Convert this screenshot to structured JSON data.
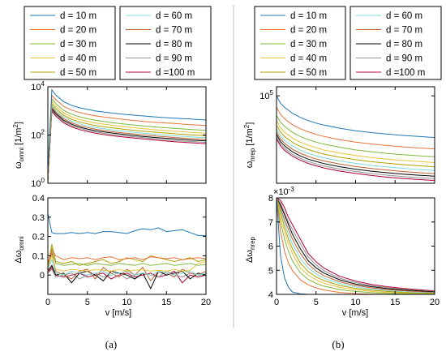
{
  "colors": [
    "#1f77b4",
    "#e8743b",
    "#7fb83b",
    "#e8c33b",
    "#b0a000",
    "#7fd8d8",
    "#c06030",
    "#000000",
    "#909090",
    "#b00030"
  ],
  "legend_entries": [
    "d = 10 m",
    "d = 20 m",
    "d = 30 m",
    "d = 40 m",
    "d = 50 m",
    "d = 60 m",
    "d = 70 m",
    "d = 80 m",
    "d = 90 m",
    "d =100 m"
  ],
  "labels": {
    "ylab_omni": "ω",
    "ylab_omni_sub": "omni",
    "ylab_omni_unit": " [1/m",
    "ylab_omni_sup": "2",
    "ylab_omni_close": "]",
    "ylab_nrep": "ω",
    "ylab_nrep_sub": "nrep",
    "ylab_nrep_unit": " [1/m",
    "ylab_nrep_sup": "2",
    "ylab_nrep_close": "]",
    "ylab_domni": "Δω",
    "ylab_domni_sub": "omni",
    "ylab_dnrep": "Δω",
    "ylab_dnrep_sub": "nrep",
    "xlab_a": "v [m/s]",
    "xlab_b": "v [m/s]",
    "exp_base": "×10",
    "exp_power": "-3",
    "caption_a": "(a)",
    "caption_b": "(b)"
  },
  "chart_data": [
    {
      "id": "omni",
      "type": "line",
      "scale": "log",
      "xlabel": "v [m/s]",
      "ylabel": "ω_omni [1/m²]",
      "xlim": [
        0,
        20
      ],
      "ylim": [
        1,
        10000
      ],
      "xticks": [],
      "yticks": [
        {
          "label": "10",
          "sup": "0",
          "v": 1
        },
        {
          "label": "10",
          "sup": "2",
          "v": 100
        },
        {
          "label": "10",
          "sup": "4",
          "v": 10000
        }
      ],
      "x": [
        0,
        0.5,
        1,
        2,
        3,
        4,
        5,
        6,
        8,
        10,
        12,
        14,
        16,
        18,
        20
      ],
      "series": [
        {
          "values": [
            3,
            7500,
            4500,
            2400,
            1700,
            1350,
            1150,
            1000,
            820,
            700,
            620,
            550,
            500,
            460,
            420
          ]
        },
        {
          "values": [
            2,
            4500,
            2900,
            1550,
            1080,
            850,
            720,
            620,
            510,
            430,
            370,
            330,
            300,
            270,
            250
          ]
        },
        {
          "values": [
            1.8,
            3200,
            2000,
            1050,
            730,
            570,
            480,
            410,
            330,
            280,
            240,
            210,
            190,
            170,
            155
          ]
        },
        {
          "values": [
            1.6,
            2500,
            1550,
            820,
            560,
            440,
            370,
            315,
            255,
            215,
            185,
            160,
            145,
            130,
            118
          ]
        },
        {
          "values": [
            1.5,
            2000,
            1250,
            650,
            450,
            350,
            290,
            248,
            200,
            168,
            145,
            127,
            113,
            102,
            93
          ]
        },
        {
          "values": [
            1.4,
            1700,
            1050,
            550,
            375,
            290,
            240,
            205,
            165,
            139,
            120,
            105,
            93,
            84,
            77
          ]
        },
        {
          "values": [
            1.3,
            1450,
            900,
            470,
            320,
            248,
            205,
            175,
            140,
            118,
            102,
            89,
            79,
            71,
            65
          ]
        },
        {
          "values": [
            1.25,
            1250,
            780,
            410,
            280,
            216,
            178,
            152,
            122,
            103,
            88,
            77,
            69,
            62,
            57
          ]
        },
        {
          "values": [
            1.2,
            1100,
            690,
            360,
            245,
            190,
            157,
            134,
            107,
            90,
            78,
            68,
            60,
            54,
            50
          ]
        },
        {
          "values": [
            1.15,
            980,
            610,
            320,
            218,
            168,
            139,
            119,
            95,
            80,
            69,
            60,
            53,
            48,
            44
          ]
        }
      ]
    },
    {
      "id": "domni",
      "type": "line",
      "scale": "linear",
      "xlabel": "v [m/s]",
      "ylabel": "Δω_omni",
      "xlim": [
        0,
        20
      ],
      "ylim": [
        -0.1,
        0.4
      ],
      "xticks": [
        0,
        5,
        10,
        15,
        20
      ],
      "yticks": [
        {
          "label": "0",
          "v": 0
        },
        {
          "label": "0.1",
          "v": 0.1
        },
        {
          "label": "0.2",
          "v": 0.2
        },
        {
          "label": "0.3",
          "v": 0.3
        },
        {
          "label": "0.4",
          "v": 0.4
        }
      ],
      "x": [
        0,
        0.5,
        1,
        2,
        3,
        4,
        5,
        6,
        7,
        8,
        9,
        10,
        11,
        12,
        13,
        14,
        15,
        16,
        17,
        18,
        19,
        20
      ],
      "series": [
        {
          "values": [
            0.32,
            0.22,
            0.215,
            0.215,
            0.22,
            0.215,
            0.22,
            0.215,
            0.225,
            0.225,
            0.22,
            0.215,
            0.23,
            0.24,
            0.235,
            0.245,
            0.225,
            0.23,
            0.235,
            0.22,
            0.205,
            0.205
          ]
        },
        {
          "values": [
            0.06,
            0.13,
            0.1,
            0.08,
            0.09,
            0.085,
            0.09,
            0.08,
            0.09,
            0.095,
            0.08,
            0.085,
            0.09,
            0.08,
            0.095,
            0.09,
            0.085,
            0.09,
            0.08,
            0.085,
            0.09,
            0.085
          ]
        },
        {
          "values": [
            0.05,
            0.14,
            0.06,
            0.05,
            0.055,
            0.06,
            0.05,
            0.06,
            0.055,
            0.05,
            0.06,
            0.055,
            0.05,
            0.06,
            0.05,
            0.055,
            0.06,
            0.05,
            0.055,
            0.06,
            0.05,
            0.055
          ]
        },
        {
          "values": [
            0.04,
            0.1,
            0.03,
            0.02,
            0.03,
            0.025,
            0.02,
            0.03,
            0.025,
            0.02,
            0.03,
            0.02,
            0.025,
            0.03,
            0.02,
            0.025,
            0.02,
            0.03,
            0.02,
            0.025,
            0.06,
            0.07
          ]
        },
        {
          "values": [
            0.04,
            0.16,
            0.07,
            0.06,
            0.07,
            0.05,
            0.06,
            0.07,
            0.08,
            0.06,
            0.07,
            0.09,
            0.08,
            0.07,
            0.1,
            0.09,
            0.08,
            0.07,
            0.08,
            0.09,
            0.07,
            0.08
          ]
        },
        {
          "values": [
            0.03,
            0.08,
            0.01,
            0.0,
            0.02,
            0.01,
            0.0,
            0.01,
            0.02,
            0.0,
            0.01,
            0.02,
            0.0,
            0.01,
            0.0,
            0.02,
            0.01,
            0.0,
            0.01,
            0.02,
            0.0,
            0.01
          ]
        },
        {
          "values": [
            0.02,
            0.12,
            0.02,
            0.0,
            -0.02,
            0.02,
            0.03,
            -0.02,
            0.04,
            0.01,
            -0.01,
            0.03,
            0.0,
            0.04,
            -0.03,
            0.02,
            0.01,
            -0.01,
            0.03,
            0.01,
            0.0,
            0.02
          ]
        },
        {
          "values": [
            0.02,
            0.05,
            0.0,
            0.01,
            -0.04,
            0.01,
            0.02,
            0.0,
            -0.03,
            0.02,
            0.01,
            0.0,
            -0.02,
            0.01,
            -0.07,
            0.02,
            0.0,
            0.01,
            0.02,
            -0.02,
            0.01,
            0.0
          ]
        },
        {
          "values": [
            0.01,
            0.03,
            -0.01,
            0.0,
            0.01,
            -0.02,
            0.0,
            0.01,
            -0.01,
            0.0,
            0.01,
            -0.02,
            0.0,
            0.01,
            0.0,
            -0.01,
            0.02,
            0.0,
            -0.01,
            0.01,
            0.0,
            0.0
          ]
        },
        {
          "values": [
            0.01,
            0.04,
            0.0,
            -0.01,
            0.0,
            0.01,
            -0.01,
            0.0,
            0.01,
            -0.02,
            0.0,
            0.01,
            -0.01,
            0.0,
            0.01,
            -0.01,
            0.0,
            0.02,
            -0.04,
            0.0,
            -0.01,
            0.0
          ]
        }
      ]
    },
    {
      "id": "nrep",
      "type": "line",
      "scale": "log",
      "xlabel": "v [m/s]",
      "ylabel": "ω_nrep [1/m²]",
      "xlim": [
        0,
        20
      ],
      "ylim": [
        2000,
        150000
      ],
      "xticks": [],
      "yticks": [
        {
          "label": "10",
          "sup": "5",
          "v": 100000
        }
      ],
      "x": [
        0,
        0.5,
        1,
        2,
        3,
        4,
        5,
        6,
        8,
        10,
        12,
        14,
        16,
        18,
        20
      ],
      "series": [
        {
          "values": [
            100000,
            72000,
            60000,
            46000,
            38000,
            33000,
            29500,
            27000,
            23500,
            21000,
            19300,
            18000,
            17000,
            16200,
            15500
          ]
        },
        {
          "values": [
            60000,
            44000,
            36000,
            27500,
            23000,
            20000,
            17800,
            16200,
            14100,
            12600,
            11600,
            10800,
            10200,
            9700,
            9300
          ]
        },
        {
          "values": [
            42000,
            31000,
            25500,
            19500,
            16200,
            14100,
            12600,
            11500,
            10000,
            8900,
            8200,
            7600,
            7200,
            6850,
            6550
          ]
        },
        {
          "values": [
            33000,
            24000,
            19800,
            15100,
            12600,
            11000,
            9800,
            8900,
            7750,
            6950,
            6350,
            5900,
            5550,
            5300,
            5050
          ]
        },
        {
          "values": [
            27000,
            19800,
            16300,
            12500,
            10400,
            9050,
            8100,
            7350,
            6400,
            5750,
            5250,
            4900,
            4600,
            4380,
            4180
          ]
        },
        {
          "values": [
            23000,
            16800,
            13800,
            10600,
            8800,
            7650,
            6850,
            6250,
            5430,
            4870,
            4450,
            4150,
            3900,
            3710,
            3550
          ]
        },
        {
          "values": [
            20000,
            14600,
            12000,
            9200,
            7650,
            6650,
            5950,
            5430,
            4720,
            4230,
            3870,
            3600,
            3390,
            3220,
            3080
          ]
        },
        {
          "values": [
            17800,
            13000,
            10700,
            8200,
            6800,
            5900,
            5300,
            4830,
            4200,
            3760,
            3440,
            3200,
            3010,
            2860,
            2740
          ]
        },
        {
          "values": [
            16000,
            11700,
            9600,
            7350,
            6100,
            5300,
            4750,
            4330,
            3770,
            3380,
            3090,
            2870,
            2700,
            2570,
            2460
          ]
        },
        {
          "values": [
            14600,
            10700,
            8800,
            6750,
            5600,
            4870,
            4360,
            3970,
            3450,
            3100,
            2830,
            2630,
            2480,
            2360,
            2260
          ]
        }
      ]
    },
    {
      "id": "dnrep",
      "type": "line",
      "scale": "linear",
      "xlabel": "v [m/s]",
      "ylabel": "Δω_nrep",
      "xlim": [
        0,
        20
      ],
      "ylim": [
        0.004,
        0.008
      ],
      "xticks": [
        0,
        5,
        10,
        15,
        20
      ],
      "yticks": [
        {
          "label": "4",
          "v": 0.004
        },
        {
          "label": "5",
          "v": 0.005
        },
        {
          "label": "6",
          "v": 0.006
        },
        {
          "label": "7",
          "v": 0.007
        },
        {
          "label": "8",
          "v": 0.008
        }
      ],
      "x": [
        0,
        0.5,
        1,
        1.5,
        2,
        3,
        4,
        5,
        6,
        8,
        10,
        12,
        14,
        16,
        18,
        20
      ],
      "series": [
        {
          "values": [
            0.008,
            0.0056,
            0.0047,
            0.0043,
            0.0041,
            0.00402,
            0.004,
            0.004,
            0.004,
            0.004,
            0.004,
            0.004,
            0.004,
            0.004,
            0.004,
            0.004
          ]
        },
        {
          "values": [
            0.008,
            0.0066,
            0.0058,
            0.0053,
            0.005,
            0.0046,
            0.0044,
            0.00427,
            0.00418,
            0.00408,
            0.00403,
            0.00401,
            0.004,
            0.004,
            0.004,
            0.004
          ]
        },
        {
          "values": [
            0.008,
            0.007,
            0.0063,
            0.0058,
            0.0054,
            0.0049,
            0.00462,
            0.00445,
            0.00434,
            0.0042,
            0.00412,
            0.00407,
            0.00404,
            0.00402,
            0.00401,
            0.004
          ]
        },
        {
          "values": [
            0.008,
            0.0072,
            0.0066,
            0.0061,
            0.0057,
            0.0051,
            0.0048,
            0.0046,
            0.00446,
            0.00429,
            0.00419,
            0.00412,
            0.00408,
            0.00405,
            0.00403,
            0.00402
          ]
        },
        {
          "values": [
            0.008,
            0.0074,
            0.0068,
            0.0063,
            0.0059,
            0.0053,
            0.00495,
            0.00472,
            0.00457,
            0.00437,
            0.00425,
            0.00417,
            0.00412,
            0.00408,
            0.00405,
            0.00404
          ]
        },
        {
          "values": [
            0.008,
            0.0075,
            0.007,
            0.0065,
            0.0061,
            0.0055,
            0.0051,
            0.00485,
            0.00467,
            0.00445,
            0.00431,
            0.00422,
            0.00416,
            0.00411,
            0.00408,
            0.00406
          ]
        },
        {
          "values": [
            0.008,
            0.0076,
            0.0071,
            0.0067,
            0.0063,
            0.0057,
            0.00525,
            0.00497,
            0.00477,
            0.00452,
            0.00437,
            0.00427,
            0.0042,
            0.00415,
            0.00411,
            0.00408
          ]
        },
        {
          "values": [
            0.008,
            0.0077,
            0.0073,
            0.0069,
            0.0065,
            0.0059,
            0.0054,
            0.0051,
            0.00488,
            0.0046,
            0.00443,
            0.00432,
            0.00424,
            0.00418,
            0.00414,
            0.0041
          ]
        },
        {
          "values": [
            0.008,
            0.0078,
            0.0074,
            0.007,
            0.0067,
            0.0061,
            0.00555,
            0.00522,
            0.00498,
            0.00467,
            0.00449,
            0.00436,
            0.00428,
            0.00421,
            0.00416,
            0.00412
          ]
        },
        {
          "values": [
            0.008,
            0.0079,
            0.0076,
            0.0072,
            0.0069,
            0.0063,
            0.0057,
            0.00535,
            0.00509,
            0.00475,
            0.00455,
            0.00441,
            0.00432,
            0.00425,
            0.00419,
            0.00414
          ]
        }
      ]
    }
  ]
}
